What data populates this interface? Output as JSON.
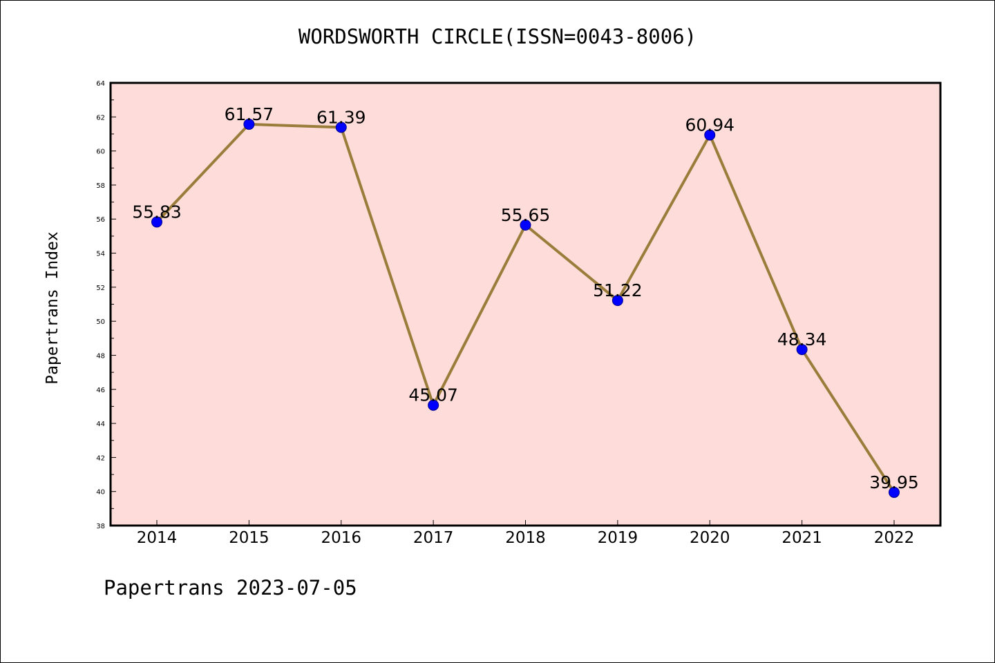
{
  "chart_data": {
    "type": "line",
    "title": "WORDSWORTH CIRCLE(ISSN=0043-8006)",
    "ylabel": "Papertrans Index",
    "xlabel": "",
    "categories": [
      "2014",
      "2015",
      "2016",
      "2017",
      "2018",
      "2019",
      "2020",
      "2021",
      "2022"
    ],
    "series": [
      {
        "values": [
          55.83,
          61.57,
          61.39,
          45.07,
          55.65,
          51.22,
          60.94,
          48.34,
          39.95
        ],
        "labels": [
          "55.83",
          "61.57",
          "61.39",
          "45.07",
          "55.65",
          "51.22",
          "60.94",
          "48.34",
          "39.95"
        ]
      }
    ],
    "ylim": [
      38,
      64
    ],
    "yticks": [
      "38",
      "40",
      "42",
      "44",
      "46",
      "48",
      "50",
      "52",
      "54",
      "56",
      "58",
      "60",
      "62",
      "64"
    ],
    "grid": false,
    "colors": {
      "plot_background": "#fddcd9",
      "line": "#9a7d3a",
      "marker": "#0000ff"
    }
  },
  "footer": "Papertrans 2023-07-05"
}
